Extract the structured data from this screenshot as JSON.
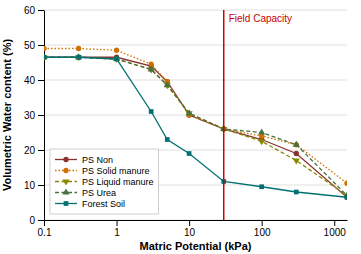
{
  "chart_data": {
    "type": "line",
    "xlabel": "Matric Potential (kPa)",
    "ylabel": "Volumetric Water content (%)",
    "x": [
      0.1,
      0.3,
      1,
      3,
      5,
      10,
      30,
      100,
      300,
      1500
    ],
    "series": [
      {
        "name": "PS Non",
        "color": "#8B3030",
        "marker": "circle",
        "line_style": "solid",
        "values": [
          46.5,
          46.5,
          46.5,
          44.0,
          39.5,
          30.0,
          26.0,
          23.0,
          19.0,
          6.5
        ]
      },
      {
        "name": "PS Solid manure",
        "color": "#D07000",
        "marker": "circle",
        "line_style": "dotted",
        "values": [
          49.0,
          49.0,
          48.5,
          44.5,
          39.5,
          30.0,
          26.0,
          24.0,
          21.5,
          10.5
        ]
      },
      {
        "name": "PS Liquid manure",
        "color": "#888800",
        "marker": "triangle-down",
        "line_style": "dashed",
        "values": [
          46.5,
          46.5,
          46.0,
          43.0,
          38.5,
          30.5,
          26.0,
          22.5,
          17.0,
          7.0
        ]
      },
      {
        "name": "PS Urea",
        "color": "#4A7040",
        "marker": "triangle-up",
        "line_style": "dashed",
        "values": [
          46.5,
          46.5,
          46.0,
          43.0,
          38.5,
          30.5,
          26.0,
          25.0,
          21.5,
          7.0
        ]
      },
      {
        "name": "Forest Soil",
        "color": "#007070",
        "marker": "square",
        "line_style": "solid",
        "values": [
          46.5,
          46.5,
          46.0,
          31.0,
          23.0,
          19.0,
          11.0,
          9.5,
          8.0,
          6.5
        ]
      }
    ],
    "annotations": [
      {
        "x": 30,
        "text": "Field Capacity",
        "color": "#cc0000"
      }
    ],
    "xlim": [
      0.1,
      1500
    ],
    "ylim": [
      0,
      60
    ],
    "xticks": [
      0.1,
      1,
      10,
      100,
      1000
    ],
    "yticks": [
      0,
      10,
      20,
      30,
      40,
      50,
      60
    ],
    "log": "x",
    "grid": true,
    "legend": "lower left"
  }
}
